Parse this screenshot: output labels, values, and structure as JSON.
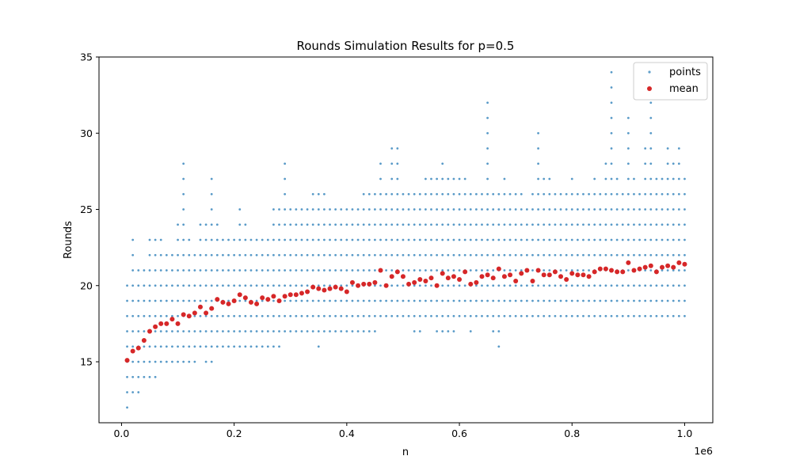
{
  "chart_data": {
    "type": "scatter",
    "title": "Rounds Simulation Results for p=0.5",
    "xlabel": "n",
    "ylabel": "Rounds",
    "x_offset_label": "1e6",
    "xlim": [
      -0.04,
      1.05
    ],
    "ylim": [
      11,
      35
    ],
    "x_ticks": [
      0.0,
      0.2,
      0.4,
      0.6,
      0.8,
      1.0
    ],
    "x_tick_labels": [
      "0.0",
      "0.2",
      "0.4",
      "0.6",
      "0.8",
      "1.0"
    ],
    "y_ticks": [
      15,
      20,
      25,
      30,
      35
    ],
    "y_tick_labels": [
      "15",
      "20",
      "25",
      "30",
      "35"
    ],
    "grid": false,
    "legend": {
      "placement": "top-right",
      "entries": [
        {
          "label": "points",
          "color": "#1f77b4"
        },
        {
          "label": "mean",
          "color": "#d62728"
        }
      ]
    },
    "series": [
      {
        "name": "points",
        "color": "#1f77b4",
        "x": [
          0.01,
          0.02,
          0.03,
          0.04,
          0.05,
          0.06,
          0.07,
          0.08,
          0.09,
          0.1,
          0.11,
          0.12,
          0.13,
          0.14,
          0.15,
          0.16,
          0.17,
          0.18,
          0.19,
          0.2,
          0.21,
          0.22,
          0.23,
          0.24,
          0.25,
          0.26,
          0.27,
          0.28,
          0.29,
          0.3,
          0.31,
          0.32,
          0.33,
          0.34,
          0.35,
          0.36,
          0.37,
          0.38,
          0.39,
          0.4,
          0.41,
          0.42,
          0.43,
          0.44,
          0.45,
          0.46,
          0.47,
          0.48,
          0.49,
          0.5,
          0.51,
          0.52,
          0.53,
          0.54,
          0.55,
          0.56,
          0.57,
          0.58,
          0.59,
          0.6,
          0.61,
          0.62,
          0.63,
          0.64,
          0.65,
          0.66,
          0.67,
          0.68,
          0.69,
          0.7,
          0.71,
          0.72,
          0.73,
          0.74,
          0.75,
          0.76,
          0.77,
          0.78,
          0.79,
          0.8,
          0.81,
          0.82,
          0.83,
          0.84,
          0.85,
          0.86,
          0.87,
          0.88,
          0.89,
          0.9,
          0.91,
          0.92,
          0.93,
          0.94,
          0.95,
          0.96,
          0.97,
          0.98,
          0.99,
          1.0
        ],
        "y_min": [
          12,
          13,
          13,
          14,
          14,
          14,
          15,
          15,
          15,
          15,
          15,
          15,
          15,
          16,
          15,
          15,
          16,
          16,
          16,
          16,
          16,
          16,
          16,
          16,
          16,
          16,
          16,
          16,
          17,
          17,
          17,
          17,
          17,
          17,
          16,
          17,
          17,
          17,
          17,
          17,
          17,
          17,
          17,
          17,
          17,
          18,
          18,
          18,
          18,
          18,
          18,
          17,
          17,
          18,
          18,
          17,
          17,
          17,
          17,
          18,
          18,
          17,
          18,
          18,
          18,
          17,
          16,
          18,
          18,
          18,
          18,
          18,
          18,
          18,
          18,
          18,
          18,
          18,
          18,
          18,
          18,
          18,
          18,
          18,
          18,
          18,
          18,
          18,
          18,
          18,
          18,
          18,
          18,
          18,
          18,
          18,
          18,
          18,
          18,
          18
        ],
        "y_max": [
          20,
          23,
          21,
          21,
          23,
          23,
          23,
          22,
          22,
          24,
          28,
          23,
          22,
          24,
          24,
          27,
          24,
          23,
          23,
          23,
          25,
          24,
          23,
          23,
          23,
          23,
          25,
          25,
          28,
          25,
          25,
          25,
          25,
          26,
          26,
          26,
          25,
          25,
          25,
          25,
          25,
          25,
          26,
          26,
          26,
          28,
          26,
          29,
          29,
          26,
          26,
          26,
          26,
          27,
          27,
          27,
          28,
          27,
          27,
          27,
          27,
          26,
          26,
          26,
          32,
          26,
          26,
          27,
          26,
          26,
          26,
          25,
          26,
          30,
          27,
          27,
          26,
          26,
          26,
          27,
          26,
          26,
          26,
          27,
          26,
          28,
          34,
          27,
          26,
          31,
          27,
          26,
          29,
          32,
          27,
          27,
          29,
          28,
          29,
          27
        ]
      },
      {
        "name": "mean",
        "color": "#d62728",
        "x": [
          0.01,
          0.02,
          0.03,
          0.04,
          0.05,
          0.06,
          0.07,
          0.08,
          0.09,
          0.1,
          0.11,
          0.12,
          0.13,
          0.14,
          0.15,
          0.16,
          0.17,
          0.18,
          0.19,
          0.2,
          0.21,
          0.22,
          0.23,
          0.24,
          0.25,
          0.26,
          0.27,
          0.28,
          0.29,
          0.3,
          0.31,
          0.32,
          0.33,
          0.34,
          0.35,
          0.36,
          0.37,
          0.38,
          0.39,
          0.4,
          0.41,
          0.42,
          0.43,
          0.44,
          0.45,
          0.46,
          0.47,
          0.48,
          0.49,
          0.5,
          0.51,
          0.52,
          0.53,
          0.54,
          0.55,
          0.56,
          0.57,
          0.58,
          0.59,
          0.6,
          0.61,
          0.62,
          0.63,
          0.64,
          0.65,
          0.66,
          0.67,
          0.68,
          0.69,
          0.7,
          0.71,
          0.72,
          0.73,
          0.74,
          0.75,
          0.76,
          0.77,
          0.78,
          0.79,
          0.8,
          0.81,
          0.82,
          0.83,
          0.84,
          0.85,
          0.86,
          0.87,
          0.88,
          0.89,
          0.9,
          0.91,
          0.92,
          0.93,
          0.94,
          0.95,
          0.96,
          0.97,
          0.98,
          0.99,
          1.0
        ],
        "y": [
          15.1,
          15.7,
          15.9,
          16.4,
          17.0,
          17.3,
          17.5,
          17.5,
          17.8,
          17.5,
          18.1,
          18.0,
          18.2,
          18.6,
          18.2,
          18.5,
          19.1,
          18.9,
          18.8,
          19.0,
          19.4,
          19.2,
          18.9,
          18.8,
          19.2,
          19.1,
          19.3,
          19.0,
          19.3,
          19.4,
          19.4,
          19.5,
          19.6,
          19.9,
          19.8,
          19.7,
          19.8,
          19.9,
          19.8,
          19.6,
          20.2,
          20.0,
          20.1,
          20.1,
          20.2,
          21.0,
          20.0,
          20.6,
          20.9,
          20.6,
          20.1,
          20.2,
          20.4,
          20.3,
          20.5,
          20.0,
          20.8,
          20.5,
          20.6,
          20.4,
          20.9,
          20.1,
          20.2,
          20.6,
          20.7,
          20.5,
          21.1,
          20.6,
          20.7,
          20.3,
          20.8,
          21.0,
          20.3,
          21.0,
          20.7,
          20.7,
          20.9,
          20.6,
          20.4,
          20.8,
          20.7,
          20.7,
          20.6,
          20.9,
          21.1,
          21.1,
          21.0,
          20.9,
          20.9,
          21.5,
          21.0,
          21.1,
          21.2,
          21.3,
          20.9,
          21.2,
          21.3,
          21.2,
          21.5,
          21.4
        ]
      }
    ]
  }
}
